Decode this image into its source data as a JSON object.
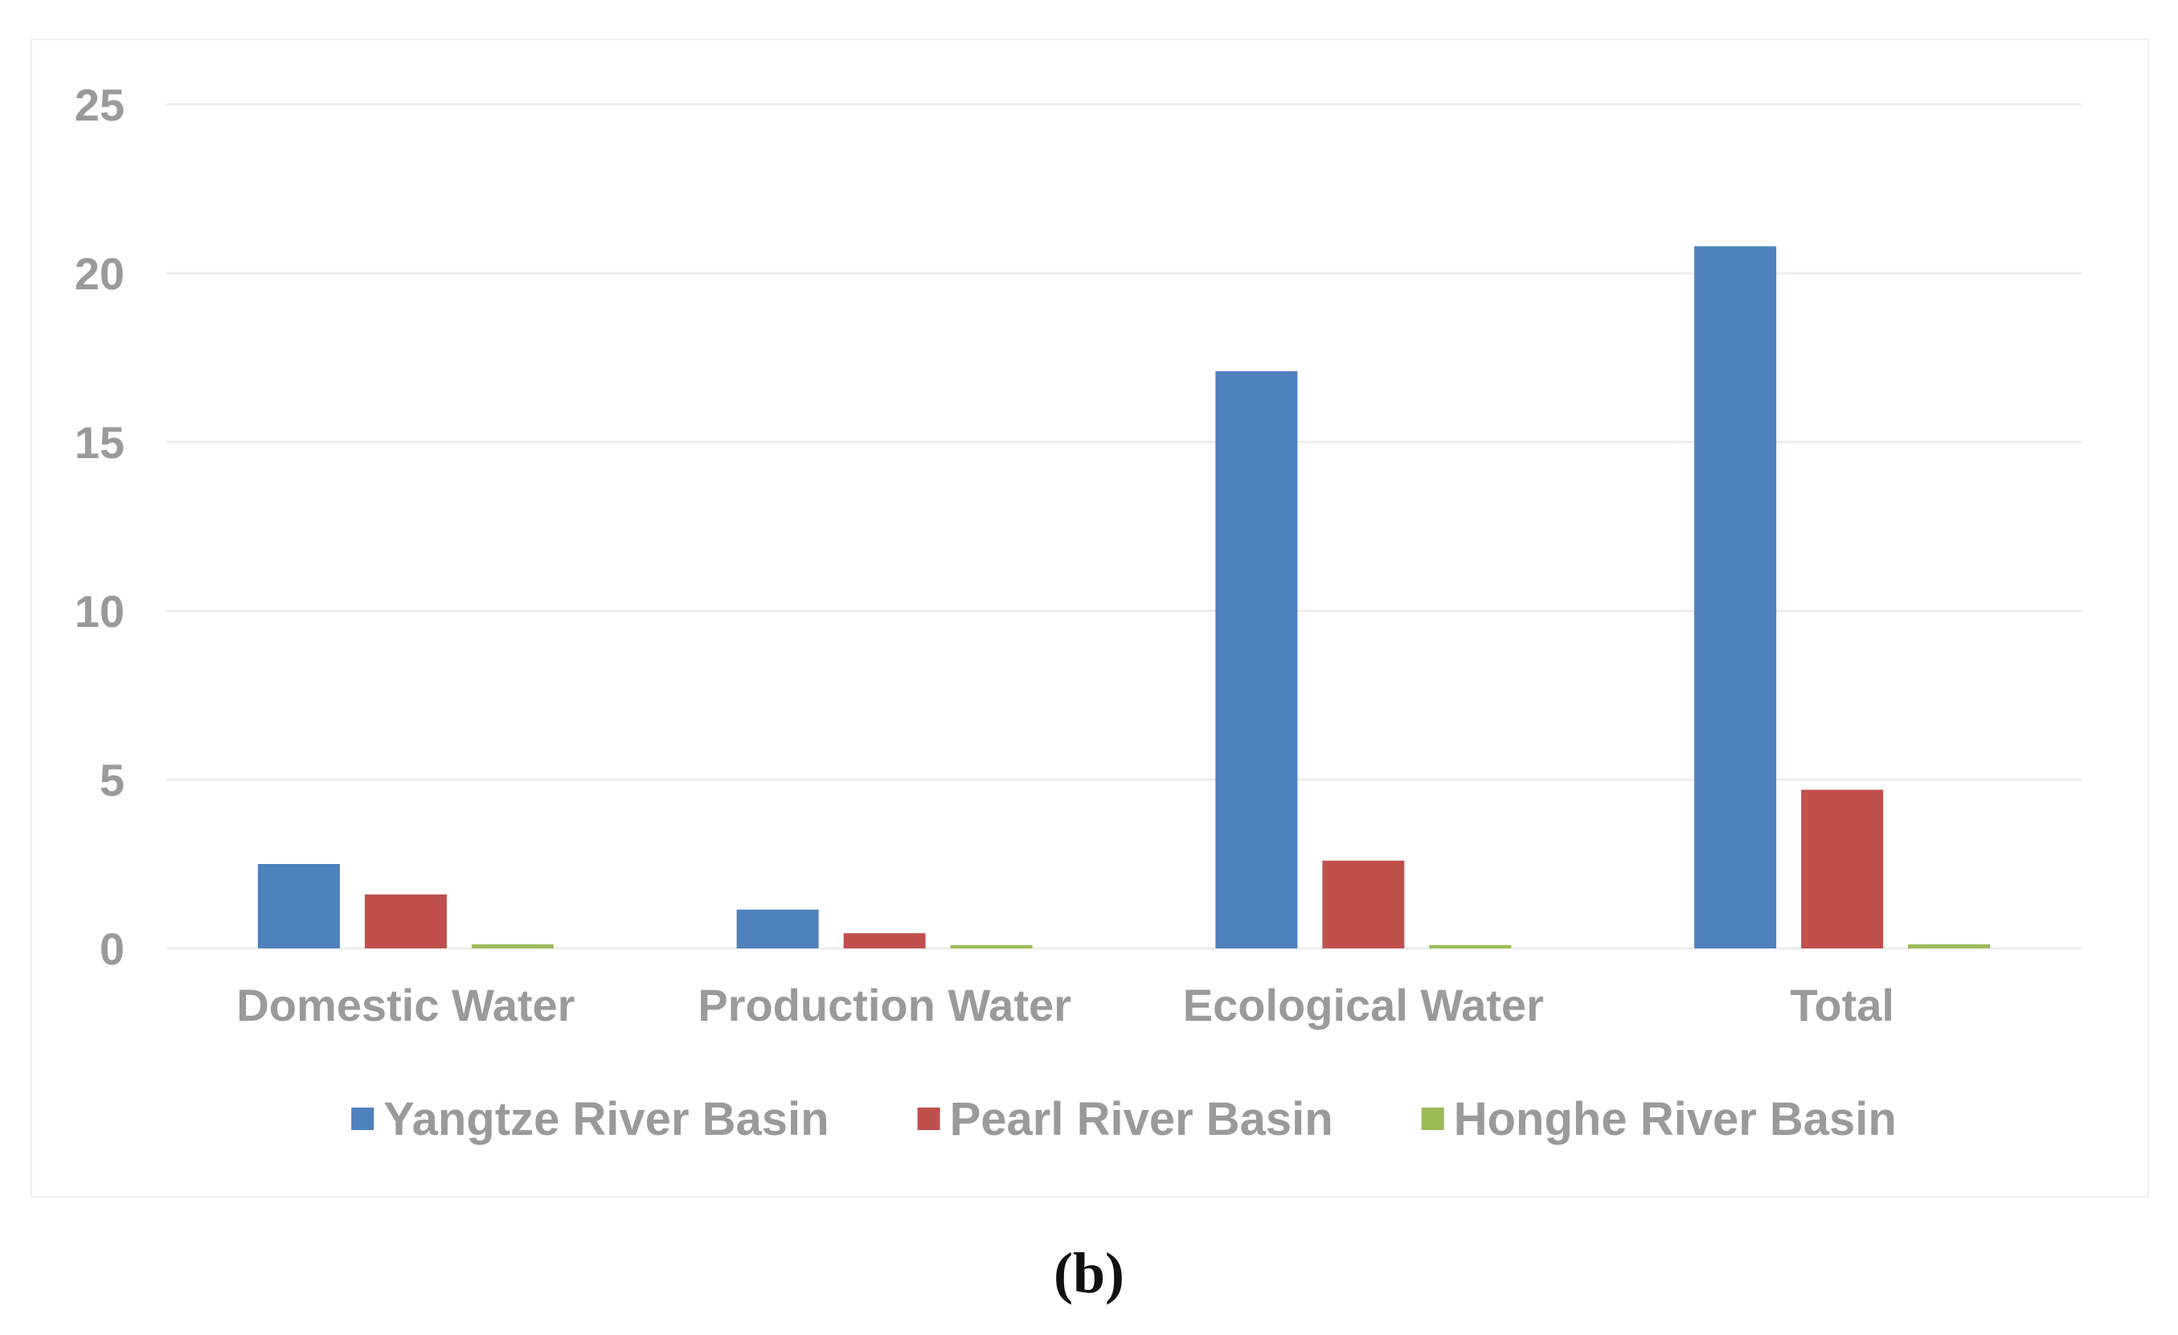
{
  "caption": "(b)",
  "chart_data": {
    "type": "bar",
    "title": "",
    "xlabel": "",
    "ylabel": "",
    "ylim": [
      0,
      25
    ],
    "yticks": [
      0,
      5,
      10,
      15,
      20,
      25
    ],
    "grid": true,
    "legend_position": "bottom",
    "categories": [
      "Domestic Water",
      "Production Water",
      "Ecological Water",
      "Total"
    ],
    "series": [
      {
        "name": "Yangtze River Basin",
        "color": "#4f81bd",
        "values": [
          2.5,
          1.15,
          17.1,
          20.8
        ]
      },
      {
        "name": "Pearl River Basin",
        "color": "#c0504d",
        "values": [
          1.6,
          0.45,
          2.6,
          4.7
        ]
      },
      {
        "name": "Honghe River Basin",
        "color": "#9bbb59",
        "values": [
          0.12,
          0.1,
          0.1,
          0.12
        ]
      }
    ]
  }
}
